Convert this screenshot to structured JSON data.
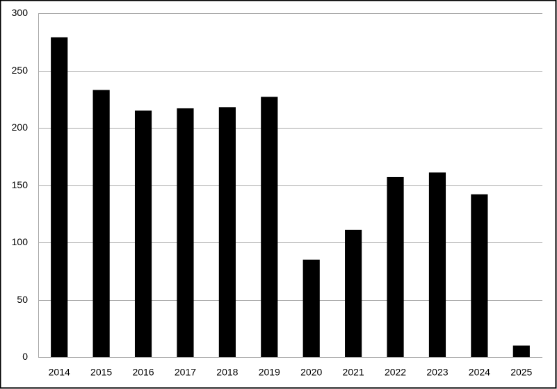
{
  "chart_data": {
    "type": "bar",
    "categories": [
      "2014",
      "2015",
      "2016",
      "2017",
      "2018",
      "2019",
      "2020",
      "2021",
      "2022",
      "2023",
      "2024",
      "2025"
    ],
    "values": [
      279,
      233,
      215,
      217,
      218,
      227,
      85,
      111,
      157,
      161,
      142,
      10
    ],
    "color": "#000000",
    "ylim": [
      0,
      300
    ],
    "yticks": [
      0,
      50,
      100,
      150,
      200,
      250,
      300
    ],
    "grid": true
  }
}
